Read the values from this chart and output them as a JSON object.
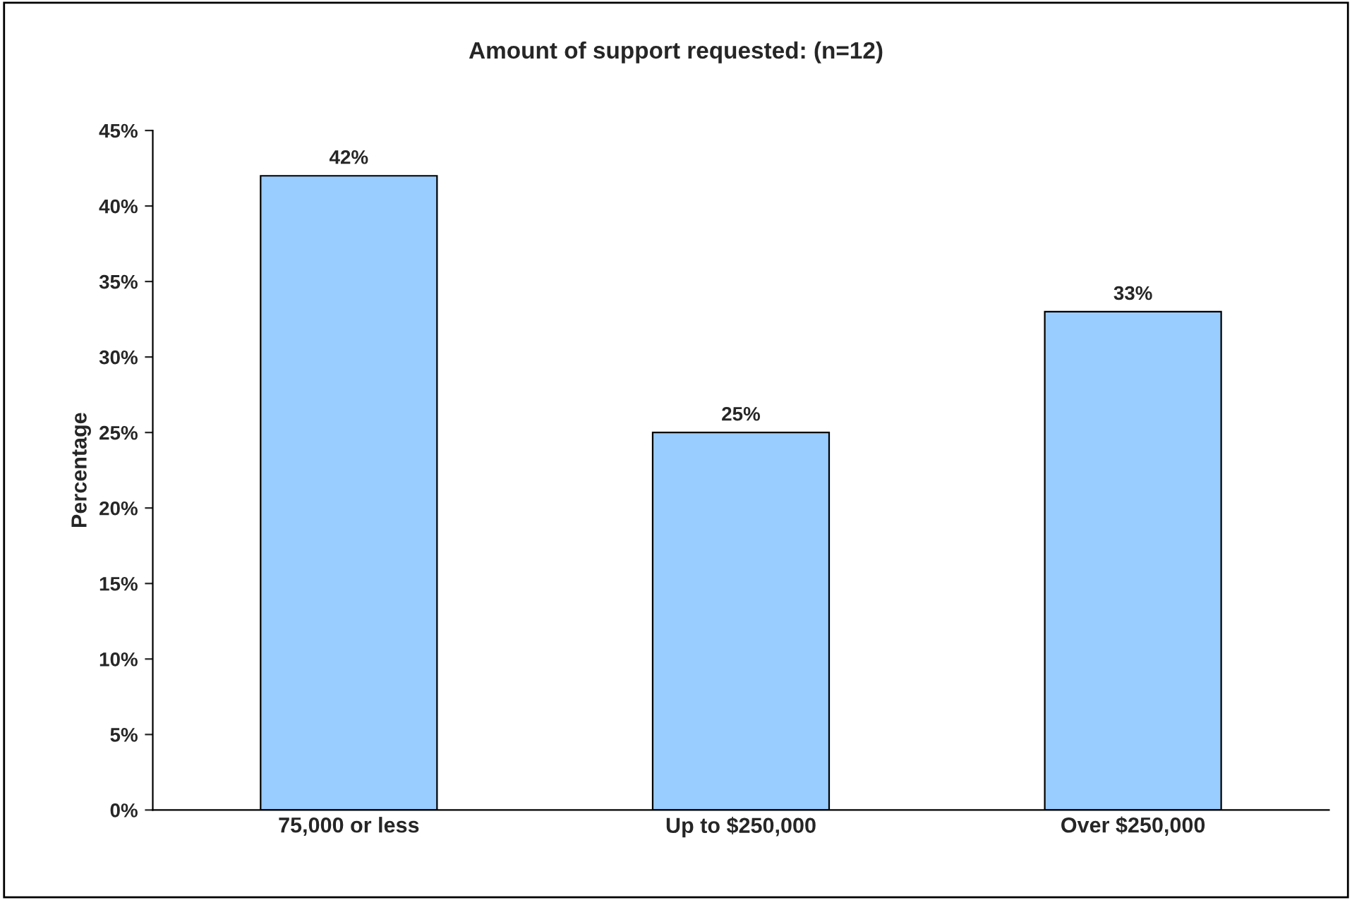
{
  "chart_data": {
    "type": "bar",
    "title": "Amount of support requested: (n=12)",
    "ylabel": "Percentage",
    "categories": [
      "75,000 or less",
      "Up to $250,000",
      "Over $250,000"
    ],
    "values": [
      42,
      25,
      33
    ],
    "color": "#99ccff",
    "value_labels": [
      "42%",
      "25%",
      "33%"
    ],
    "ylim": [
      0,
      45
    ],
    "yticks": [
      {
        "value": 0,
        "label": "0%"
      },
      {
        "value": 5,
        "label": "5%"
      },
      {
        "value": 10,
        "label": "10%"
      },
      {
        "value": 15,
        "label": "15%"
      },
      {
        "value": 20,
        "label": "20%"
      },
      {
        "value": 25,
        "label": "25%"
      },
      {
        "value": 30,
        "label": "30%"
      },
      {
        "value": 35,
        "label": "35%"
      },
      {
        "value": 40,
        "label": "40%"
      },
      {
        "value": 45,
        "label": "45%"
      }
    ],
    "grid": false,
    "legend": false
  }
}
